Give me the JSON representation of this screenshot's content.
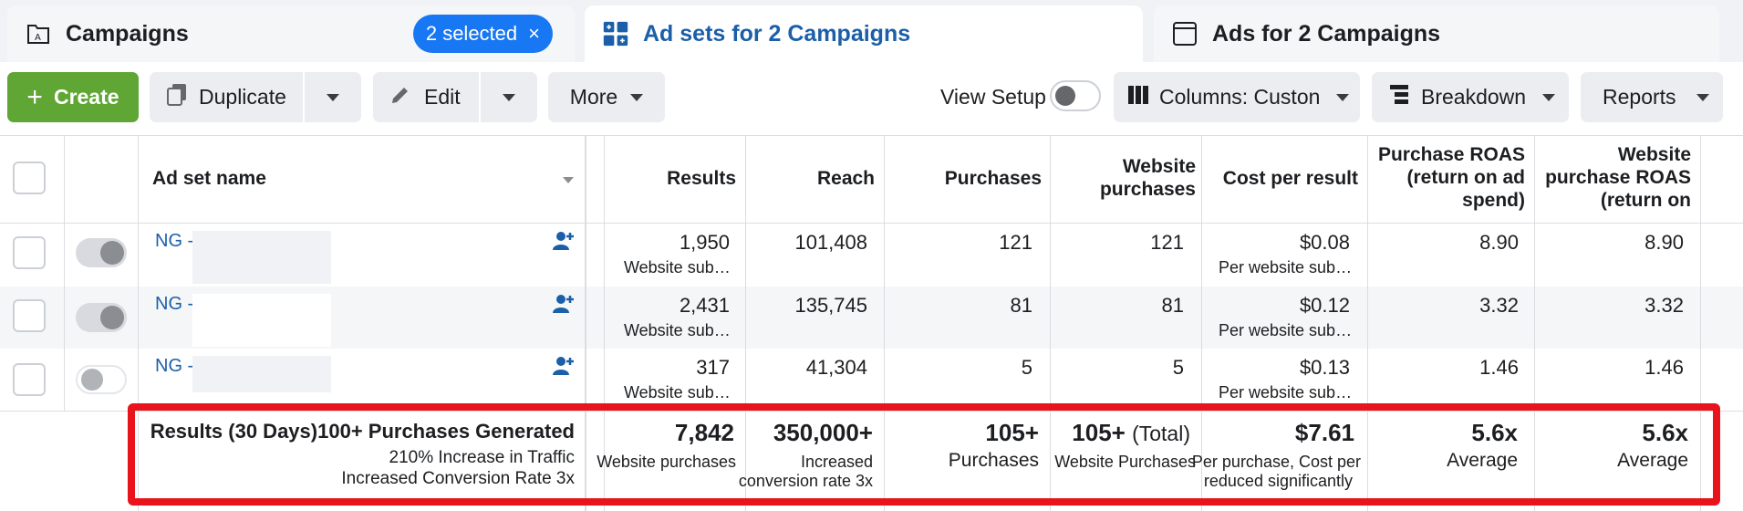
{
  "tabs": [
    {
      "label": "Campaigns",
      "icon": "campaign-folder-icon"
    },
    {
      "label": "Ad sets for 2 Campaigns",
      "icon": "adsets-grid-icon"
    },
    {
      "label": "Ads for 2 Campaigns",
      "icon": "ad-window-icon"
    }
  ],
  "selection_pill": {
    "label": "2 selected",
    "close": "×"
  },
  "toolbar": {
    "create": "Create",
    "duplicate": "Duplicate",
    "edit": "Edit",
    "more": "More",
    "view_setup": "View Setup",
    "columns": "Columns: Custon",
    "breakdown": "Breakdown",
    "reports": "Reports"
  },
  "columns": {
    "name": "Ad set name",
    "results": "Results",
    "reach": "Reach",
    "purchases": "Purchases",
    "website_purchases_l1": "Website",
    "website_purchases_l2": "purchases",
    "cost_per_result": "Cost per result",
    "roas_l1": "Purchase ROAS",
    "roas_l2": "(return on ad",
    "roas_l3": "spend)",
    "wroas_l1": "Website",
    "wroas_l2": "purchase ROAS",
    "wroas_l3": "(return on"
  },
  "rows": [
    {
      "name": "NG -",
      "results": "1,950",
      "results_sub": "Website sub…",
      "reach": "101,408",
      "purchases": "121",
      "website_purchases": "121",
      "cost": "$0.08",
      "cost_sub": "Per website sub…",
      "roas": "8.90",
      "wroas": "8.90",
      "toggle_on": true
    },
    {
      "name": "NG -",
      "results": "2,431",
      "results_sub": "Website sub…",
      "reach": "135,745",
      "purchases": "81",
      "website_purchases": "81",
      "cost": "$0.12",
      "cost_sub": "Per website sub…",
      "roas": "3.32",
      "wroas": "3.32",
      "toggle_on": true
    },
    {
      "name": "NG -",
      "results": "317",
      "results_sub": "Website sub…",
      "reach": "41,304",
      "purchases": "5",
      "website_purchases": "5",
      "cost": "$0.13",
      "cost_sub": "Per website sub…",
      "roas": "1.46",
      "wroas": "1.46",
      "toggle_on": false
    }
  ],
  "summary": {
    "label": "Results (30 Days)",
    "headline": "100+ Purchases Generated",
    "line2": "210% Increase in Traffic",
    "line3": "Increased Conversion Rate 3x",
    "results": "7,842",
    "results_sub": "Website purchases",
    "reach": "350,000+",
    "reach_sub1": "Increased",
    "reach_sub2": "conversion rate 3x",
    "purchases": "105+",
    "purchases_sub": "Purchases",
    "website_purchases": "105+",
    "website_purchases_total": "(Total)",
    "website_purchases_sub": "Website Purchases",
    "cost": "$7.61",
    "cost_sub1": "Per purchase, Cost per",
    "cost_sub2": "reduced significantly",
    "roas": "5.6x",
    "roas_sub": "Average",
    "wroas": "5.6x",
    "wroas_sub": "Average"
  },
  "colors": {
    "accent": "#1877f2",
    "create": "#5fa634",
    "highlight": "#e8131b",
    "link": "#1b5fa8"
  }
}
